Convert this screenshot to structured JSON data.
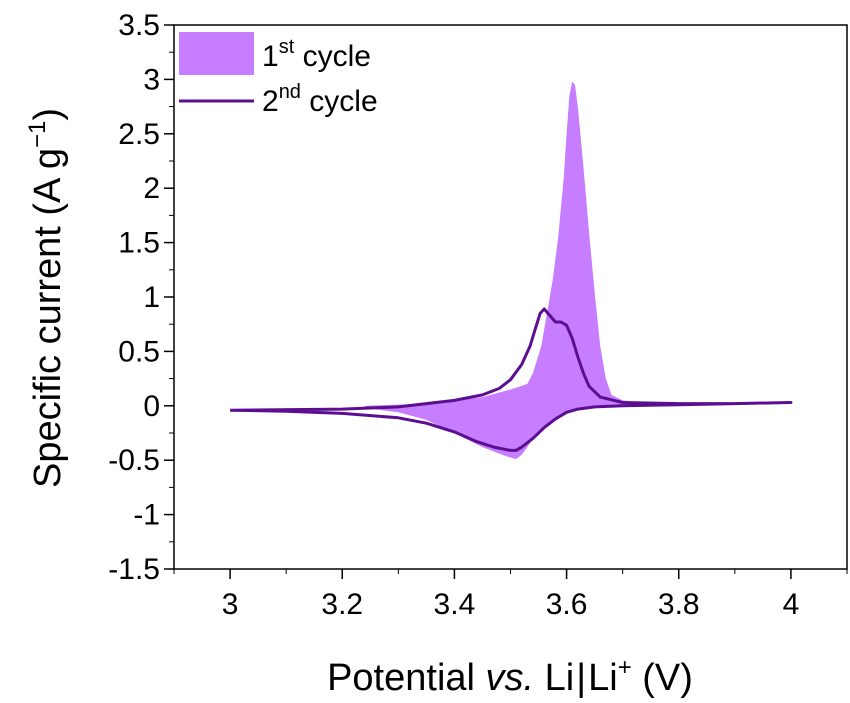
{
  "chart_data": {
    "type": "line",
    "xlabel": {
      "prefix": "Potential ",
      "italic": "vs.",
      "mid": " Li",
      "sep": "|",
      "ion": "Li",
      "ion_sup": "+",
      "unit": " (V)"
    },
    "ylabel": {
      "main": "Specific current (A g",
      "sup": "−1",
      "close": ")"
    },
    "xlim": [
      2.9,
      4.1
    ],
    "ylim": [
      -1.5,
      3.5
    ],
    "xticks": [
      3,
      3.2,
      3.4,
      3.6,
      3.8,
      4
    ],
    "xtick_labels": [
      "3",
      "3.2",
      "3.4",
      "3.6",
      "3.8",
      "4"
    ],
    "yticks": [
      3.5,
      3,
      2.5,
      2,
      1.5,
      1,
      0.5,
      0,
      -0.5,
      -1,
      -1.5
    ],
    "ytick_labels": [
      "3.5",
      "3",
      "2.5",
      "2",
      "1.5",
      "1",
      "0.5",
      "0",
      "-0.5",
      "-1",
      "-1.5"
    ],
    "grid": false,
    "legend_position": "top-left",
    "series": [
      {
        "name": "1st cycle",
        "name_base": "1",
        "name_sup": "st",
        "name_rest": " cycle",
        "style": "filled",
        "color": "#c77dff",
        "x": [
          3.24,
          3.35,
          3.45,
          3.5,
          3.53,
          3.54,
          3.555,
          3.565,
          3.575,
          3.585,
          3.595,
          3.6,
          3.605,
          3.61,
          3.615,
          3.62,
          3.63,
          3.64,
          3.65,
          3.66,
          3.67,
          3.68,
          3.7,
          3.75,
          3.85,
          4.0,
          3.85,
          3.7,
          3.65,
          3.62,
          3.6,
          3.58,
          3.56,
          3.54,
          3.53,
          3.52,
          3.51,
          3.49,
          3.45,
          3.4,
          3.35,
          3.3,
          3.24
        ],
        "y": [
          0.0,
          0.02,
          0.08,
          0.15,
          0.2,
          0.3,
          0.55,
          0.85,
          1.15,
          1.55,
          2.1,
          2.5,
          2.85,
          2.98,
          2.95,
          2.75,
          2.2,
          1.6,
          1.05,
          0.55,
          0.25,
          0.1,
          0.05,
          0.02,
          0.02,
          0.03,
          0.01,
          0.0,
          -0.01,
          -0.03,
          -0.07,
          -0.12,
          -0.2,
          -0.3,
          -0.38,
          -0.45,
          -0.49,
          -0.46,
          -0.38,
          -0.25,
          -0.13,
          -0.06,
          -0.02
        ]
      },
      {
        "name": "2nd cycle",
        "name_base": "2",
        "name_sup": "nd",
        "name_rest": " cycle",
        "style": "line",
        "color": "#5b0e91",
        "x": [
          3.0,
          3.2,
          3.3,
          3.4,
          3.45,
          3.48,
          3.5,
          3.52,
          3.535,
          3.545,
          3.553,
          3.56,
          3.57,
          3.58,
          3.59,
          3.6,
          3.61,
          3.62,
          3.63,
          3.64,
          3.66,
          3.7,
          3.8,
          3.9,
          4.0,
          3.9,
          3.8,
          3.7,
          3.65,
          3.62,
          3.6,
          3.58,
          3.56,
          3.54,
          3.52,
          3.51,
          3.5,
          3.47,
          3.44,
          3.4,
          3.35,
          3.3,
          3.2,
          3.1,
          3.0
        ],
        "y": [
          -0.04,
          -0.03,
          -0.01,
          0.05,
          0.1,
          0.16,
          0.24,
          0.38,
          0.55,
          0.72,
          0.85,
          0.89,
          0.83,
          0.77,
          0.77,
          0.74,
          0.62,
          0.45,
          0.3,
          0.18,
          0.08,
          0.03,
          0.02,
          0.02,
          0.03,
          0.02,
          0.01,
          0.0,
          -0.01,
          -0.03,
          -0.06,
          -0.12,
          -0.2,
          -0.3,
          -0.38,
          -0.41,
          -0.41,
          -0.38,
          -0.33,
          -0.24,
          -0.16,
          -0.11,
          -0.07,
          -0.05,
          -0.04
        ]
      }
    ]
  }
}
